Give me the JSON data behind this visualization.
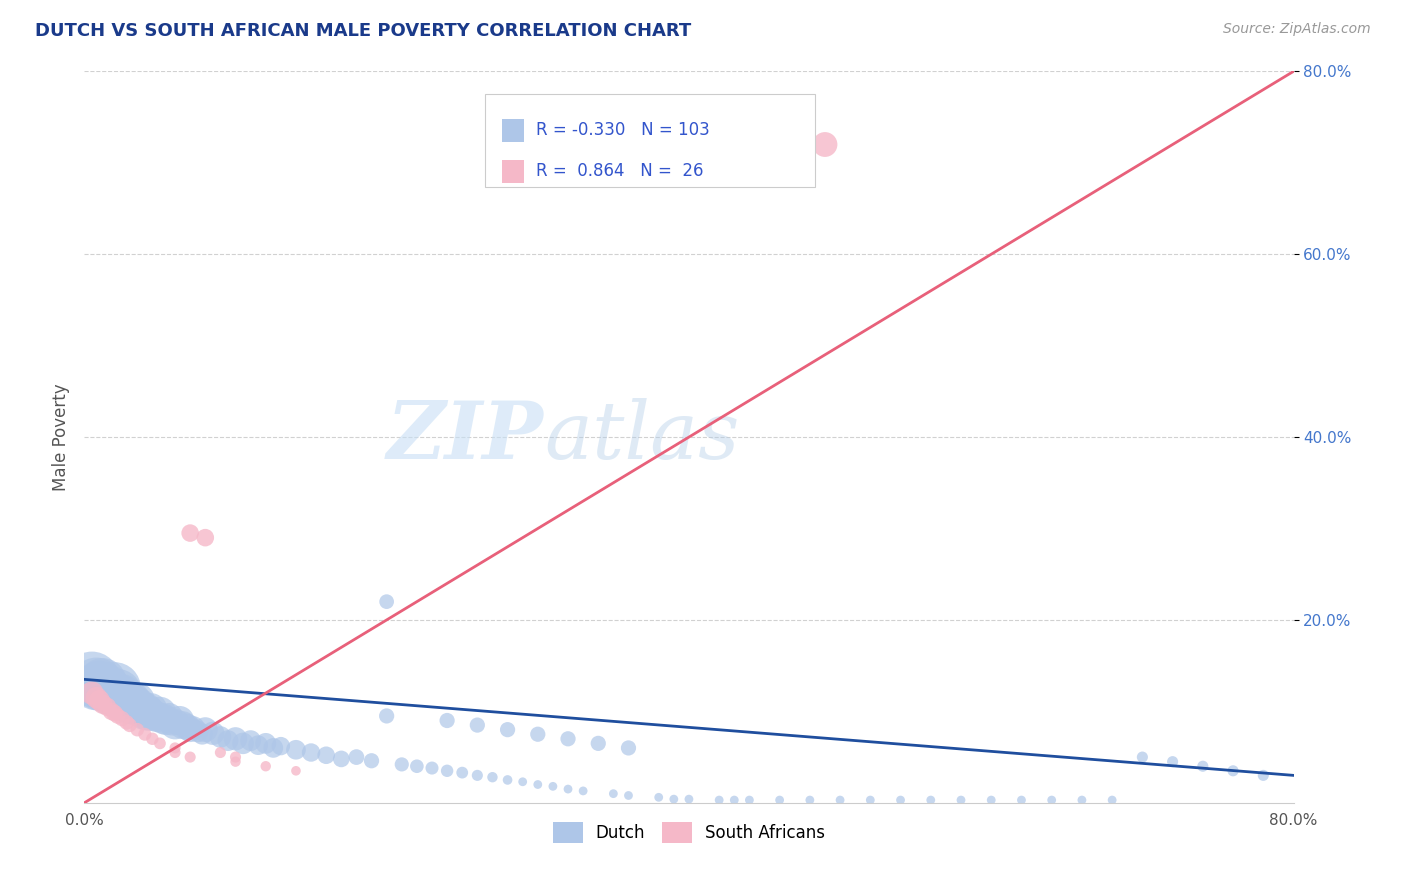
{
  "title": "DUTCH VS SOUTH AFRICAN MALE POVERTY CORRELATION CHART",
  "source_text": "Source: ZipAtlas.com",
  "ylabel": "Male Poverty",
  "watermark_zip": "ZIP",
  "watermark_atlas": "atlas",
  "xlim": [
    0.0,
    0.8
  ],
  "ylim": [
    0.0,
    0.8
  ],
  "xticks": [
    0.0,
    0.8
  ],
  "xticklabels": [
    "0.0%",
    "80.0%"
  ],
  "yticks": [
    0.2,
    0.4,
    0.6,
    0.8
  ],
  "yticklabels": [
    "20.0%",
    "40.0%",
    "60.0%",
    "80.0%"
  ],
  "dutch_color": "#aec6e8",
  "dutch_edge_color": "#aec6e8",
  "dutch_line_color": "#1f4e9e",
  "sa_color": "#f5b8c8",
  "sa_edge_color": "#f5b8c8",
  "sa_line_color": "#e8607a",
  "dutch_R": -0.33,
  "dutch_N": 103,
  "sa_R": 0.864,
  "sa_N": 26,
  "legend_text_color": "#3355cc",
  "title_color": "#1a3a8a",
  "ref_line_color": "#bbbbbb",
  "background_color": "#ffffff",
  "dutch_trend_x0": 0.0,
  "dutch_trend_y0": 0.135,
  "dutch_trend_x1": 0.8,
  "dutch_trend_y1": 0.03,
  "sa_trend_x0": 0.0,
  "sa_trend_y0": 0.0,
  "sa_trend_x1": 0.8,
  "sa_trend_y1": 0.8,
  "dutch_scatter_x": [
    0.005,
    0.008,
    0.01,
    0.012,
    0.013,
    0.015,
    0.016,
    0.018,
    0.019,
    0.02,
    0.022,
    0.024,
    0.025,
    0.026,
    0.028,
    0.03,
    0.032,
    0.034,
    0.035,
    0.036,
    0.038,
    0.04,
    0.042,
    0.044,
    0.045,
    0.048,
    0.05,
    0.052,
    0.054,
    0.056,
    0.058,
    0.06,
    0.063,
    0.065,
    0.068,
    0.07,
    0.072,
    0.075,
    0.078,
    0.08,
    0.085,
    0.09,
    0.095,
    0.1,
    0.105,
    0.11,
    0.115,
    0.12,
    0.125,
    0.13,
    0.14,
    0.15,
    0.16,
    0.17,
    0.18,
    0.19,
    0.2,
    0.21,
    0.22,
    0.23,
    0.24,
    0.25,
    0.26,
    0.27,
    0.28,
    0.29,
    0.3,
    0.31,
    0.32,
    0.33,
    0.35,
    0.36,
    0.38,
    0.39,
    0.4,
    0.42,
    0.43,
    0.44,
    0.46,
    0.48,
    0.5,
    0.52,
    0.54,
    0.56,
    0.58,
    0.6,
    0.62,
    0.64,
    0.66,
    0.68,
    0.7,
    0.72,
    0.74,
    0.76,
    0.78,
    0.2,
    0.24,
    0.26,
    0.28,
    0.3,
    0.32,
    0.34,
    0.36
  ],
  "dutch_scatter_y": [
    0.135,
    0.13,
    0.128,
    0.132,
    0.125,
    0.127,
    0.12,
    0.122,
    0.118,
    0.125,
    0.12,
    0.115,
    0.118,
    0.112,
    0.114,
    0.11,
    0.108,
    0.105,
    0.112,
    0.107,
    0.103,
    0.1,
    0.098,
    0.102,
    0.096,
    0.094,
    0.098,
    0.092,
    0.09,
    0.094,
    0.088,
    0.086,
    0.09,
    0.085,
    0.083,
    0.08,
    0.082,
    0.078,
    0.075,
    0.08,
    0.076,
    0.072,
    0.068,
    0.07,
    0.065,
    0.068,
    0.063,
    0.065,
    0.06,
    0.062,
    0.058,
    0.055,
    0.052,
    0.048,
    0.05,
    0.046,
    0.22,
    0.042,
    0.04,
    0.038,
    0.035,
    0.033,
    0.03,
    0.028,
    0.025,
    0.023,
    0.02,
    0.018,
    0.015,
    0.013,
    0.01,
    0.008,
    0.006,
    0.004,
    0.004,
    0.003,
    0.003,
    0.003,
    0.003,
    0.003,
    0.003,
    0.003,
    0.003,
    0.003,
    0.003,
    0.003,
    0.003,
    0.003,
    0.003,
    0.003,
    0.05,
    0.045,
    0.04,
    0.035,
    0.03,
    0.095,
    0.09,
    0.085,
    0.08,
    0.075,
    0.07,
    0.065,
    0.06
  ],
  "dutch_scatter_sizes": [
    200,
    180,
    160,
    150,
    140,
    130,
    120,
    110,
    100,
    180,
    150,
    130,
    110,
    100,
    90,
    120,
    100,
    90,
    80,
    75,
    70,
    90,
    80,
    70,
    65,
    60,
    70,
    60,
    55,
    50,
    45,
    60,
    55,
    50,
    45,
    40,
    35,
    30,
    28,
    40,
    35,
    30,
    28,
    35,
    30,
    28,
    25,
    28,
    25,
    22,
    25,
    22,
    20,
    18,
    16,
    15,
    14,
    13,
    12,
    11,
    10,
    9,
    8,
    7,
    6,
    5,
    5,
    5,
    5,
    5,
    5,
    5,
    5,
    5,
    5,
    5,
    5,
    5,
    5,
    5,
    5,
    5,
    5,
    5,
    5,
    5,
    5,
    5,
    5,
    5,
    8,
    8,
    8,
    8,
    8,
    15,
    15,
    15,
    15,
    15,
    15,
    15,
    15
  ],
  "sa_scatter_x": [
    0.005,
    0.008,
    0.01,
    0.012,
    0.015,
    0.018,
    0.02,
    0.022,
    0.025,
    0.028,
    0.03,
    0.035,
    0.04,
    0.045,
    0.05,
    0.06,
    0.07,
    0.08,
    0.09,
    0.1,
    0.12,
    0.14,
    0.06,
    0.07,
    0.49,
    0.1
  ],
  "sa_scatter_y": [
    0.12,
    0.115,
    0.112,
    0.108,
    0.105,
    0.1,
    0.098,
    0.095,
    0.092,
    0.088,
    0.085,
    0.08,
    0.075,
    0.07,
    0.065,
    0.06,
    0.295,
    0.29,
    0.055,
    0.05,
    0.04,
    0.035,
    0.055,
    0.05,
    0.72,
    0.045
  ],
  "sa_scatter_sizes": [
    35,
    30,
    28,
    25,
    22,
    20,
    18,
    16,
    15,
    14,
    13,
    12,
    11,
    10,
    9,
    8,
    20,
    20,
    8,
    8,
    7,
    6,
    8,
    8,
    40,
    7
  ]
}
